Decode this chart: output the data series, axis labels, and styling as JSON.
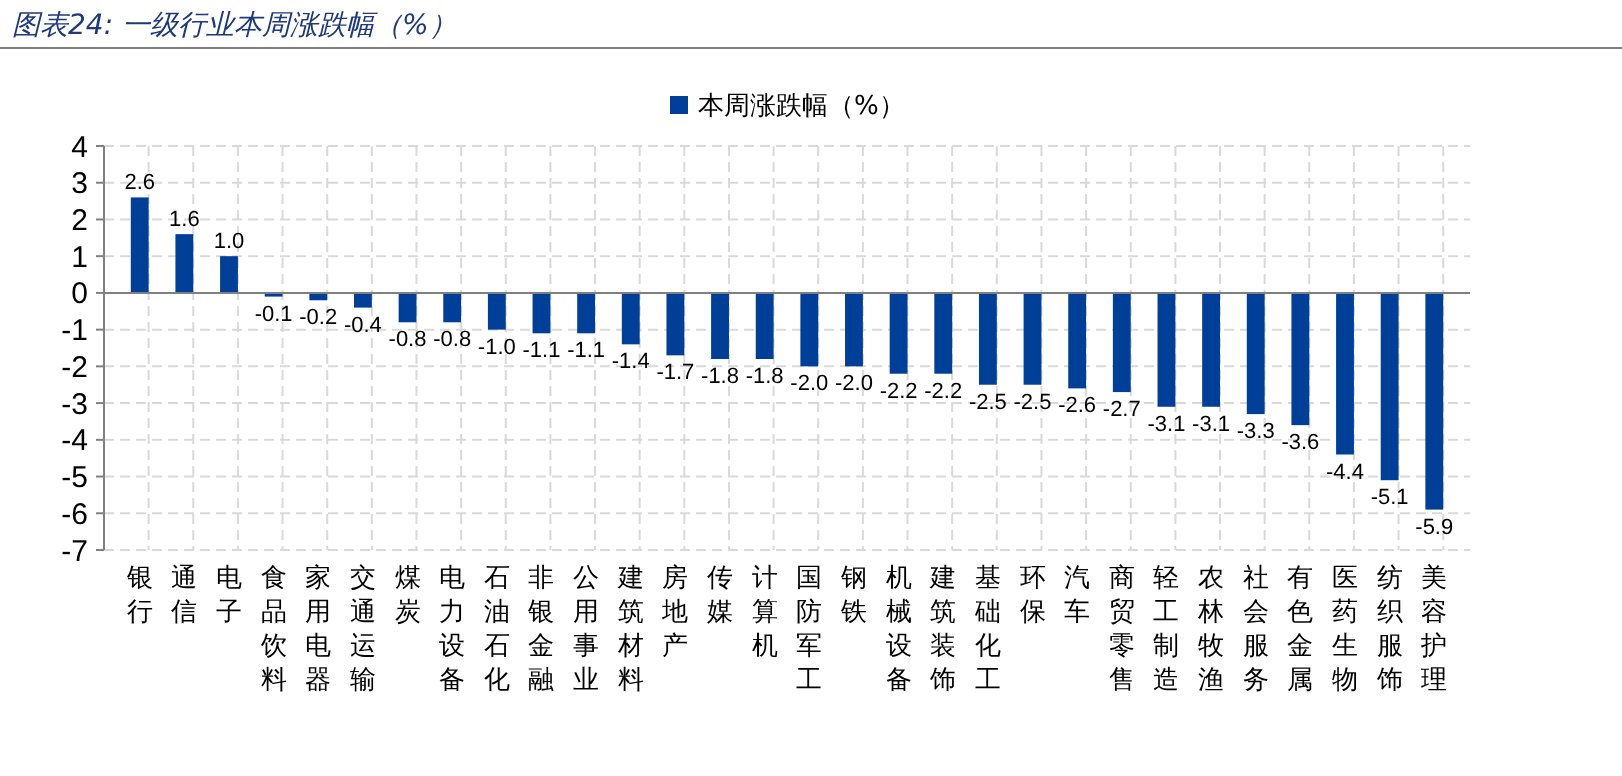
{
  "chart_data": {
    "type": "bar",
    "title": "图表24: 一级行业本周涨跌幅（%）",
    "categories": [
      "银行",
      "通信",
      "电子",
      "食品饮料",
      "家用电器",
      "交通运输",
      "煤炭",
      "电力设备",
      "石油石化",
      "非银金融",
      "公用事业",
      "建筑材料",
      "房地产",
      "传媒",
      "计算机",
      "国防军工",
      "钢铁",
      "机械设备",
      "建筑装饰",
      "基础化工",
      "环保",
      "汽车",
      "商贸零售",
      "轻工制造",
      "农林牧渔",
      "社会服务",
      "有色金属",
      "医药生物",
      "纺织服饰",
      "美容护理"
    ],
    "series": [
      {
        "name": "本周涨跌幅（%）",
        "color": "#003f98",
        "values": [
          2.6,
          1.6,
          1.0,
          -0.1,
          -0.2,
          -0.4,
          -0.8,
          -0.8,
          -1.0,
          -1.1,
          -1.1,
          -1.4,
          -1.7,
          -1.8,
          -1.8,
          -2.0,
          -2.0,
          -2.2,
          -2.2,
          -2.5,
          -2.5,
          -2.6,
          -2.7,
          -3.1,
          -3.1,
          -3.3,
          -3.6,
          -4.4,
          -5.1,
          -5.9
        ],
        "value_labels": [
          "2.6",
          "1.6",
          "1.0",
          "-0.1",
          "-0.2",
          "-0.4",
          "-0.8",
          "-0.8",
          "-1.0",
          "-1.1",
          "-1.1",
          "-1.4",
          "-1.7",
          "-1.8",
          "-1.8",
          "-2.0",
          "-2.0",
          "-2.2",
          "-2.2",
          "-2.5",
          "-2.5",
          "-2.6",
          "-2.7",
          "-3.1",
          "-3.1",
          "-3.3",
          "-3.6",
          "-4.4",
          "-5.1",
          "-5.9"
        ]
      }
    ],
    "ylim": [
      -7,
      4
    ],
    "yticks": [
      -7,
      -6,
      -5,
      -4,
      -3,
      -2,
      -1,
      0,
      1,
      2,
      3,
      4
    ],
    "grid": true,
    "legend": "top"
  }
}
